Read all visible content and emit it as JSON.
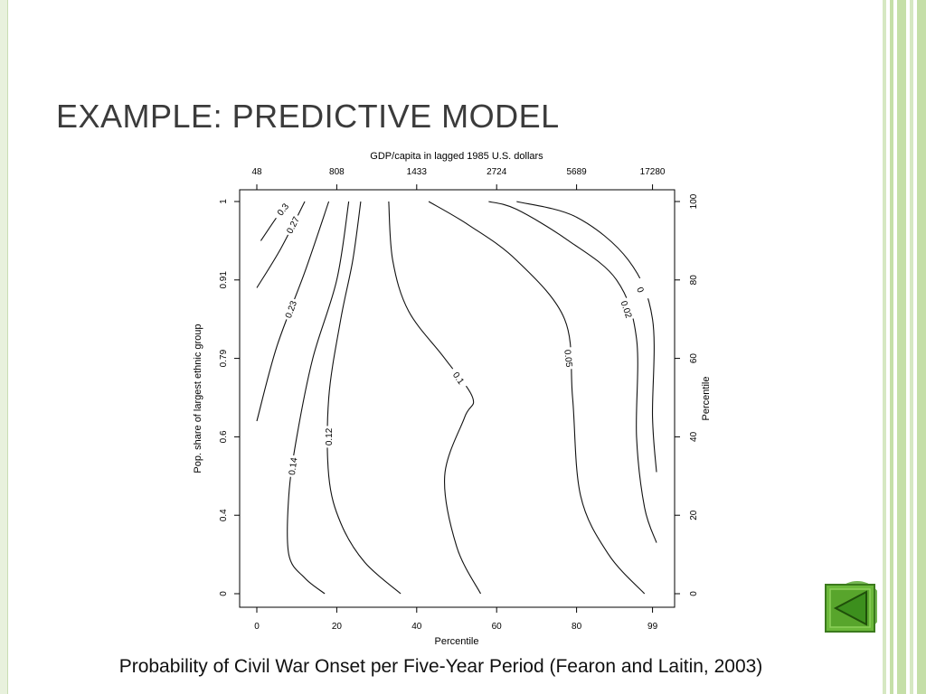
{
  "slide": {
    "title": "EXAMPLE: PREDICTIVE MODEL",
    "caption": "Probability of Civil War Onset per Five-Year Period (Fearon and Laitin, 2003)"
  },
  "nav": {
    "icon": "back-arrow-icon",
    "color": "#4f9a2a"
  },
  "theme": {
    "accent": "#c5dfa8",
    "title_color": "#3b3b3b"
  },
  "chart_data": {
    "type": "contour",
    "title": "",
    "top_axis_label": "GDP/capita in lagged 1985 U.S. dollars",
    "top_ticks": [
      "48",
      "808",
      "1433",
      "2724",
      "5689",
      "17280"
    ],
    "bottom_axis_label": "Percentile",
    "bottom_ticks": [
      "0",
      "20",
      "40",
      "60",
      "80",
      "99"
    ],
    "left_axis_label": "Pop. share of largest ethnic group",
    "left_ticks": [
      "0",
      "0.4",
      "0.6",
      "0.79",
      "0.91",
      "1"
    ],
    "right_axis_label": "Percentile",
    "right_ticks": [
      "0",
      "20",
      "40",
      "60",
      "80",
      "100"
    ],
    "xlim": [
      0,
      100
    ],
    "ylim": [
      0,
      100
    ],
    "levels": [
      {
        "level": "0.3",
        "points": [
          [
            1,
            90
          ],
          [
            5,
            96
          ],
          [
            8,
            100
          ]
        ]
      },
      {
        "level": "0.27",
        "points": [
          [
            0,
            78
          ],
          [
            6,
            88
          ],
          [
            12,
            100
          ]
        ]
      },
      {
        "level": "0.23",
        "points": [
          [
            0,
            44
          ],
          [
            5,
            63
          ],
          [
            12,
            82
          ],
          [
            18,
            100
          ]
        ]
      },
      {
        "level": "0.14",
        "points": [
          [
            17,
            0
          ],
          [
            12,
            4
          ],
          [
            8,
            10
          ],
          [
            8,
            25
          ],
          [
            10,
            40
          ],
          [
            14,
            60
          ],
          [
            20,
            80
          ],
          [
            23,
            100
          ]
        ]
      },
      {
        "level": "0.12",
        "points": [
          [
            36,
            0
          ],
          [
            27,
            8
          ],
          [
            21,
            18
          ],
          [
            18,
            30
          ],
          [
            18,
            50
          ],
          [
            21,
            70
          ],
          [
            24,
            85
          ],
          [
            26,
            100
          ]
        ]
      },
      {
        "level": "0.1",
        "points": [
          [
            56,
            0
          ],
          [
            50,
            12
          ],
          [
            47,
            30
          ],
          [
            52,
            45
          ],
          [
            54,
            50
          ],
          [
            47,
            60
          ],
          [
            38,
            72
          ],
          [
            34,
            85
          ],
          [
            33,
            100
          ]
        ]
      },
      {
        "level": "0.05",
        "points": [
          [
            97,
            0
          ],
          [
            88,
            10
          ],
          [
            81,
            25
          ],
          [
            79,
            50
          ],
          [
            77,
            70
          ],
          [
            65,
            85
          ],
          [
            53,
            94
          ],
          [
            43,
            100
          ]
        ]
      },
      {
        "level": "0.02",
        "points": [
          [
            100,
            13
          ],
          [
            97,
            22
          ],
          [
            95,
            40
          ],
          [
            95,
            65
          ],
          [
            90,
            80
          ],
          [
            78,
            90
          ],
          [
            65,
            98
          ],
          [
            58,
            100
          ]
        ]
      },
      {
        "level": "0",
        "points": [
          [
            100,
            31
          ],
          [
            99,
            45
          ],
          [
            99,
            70
          ],
          [
            93,
            85
          ],
          [
            80,
            96
          ],
          [
            65,
            100
          ]
        ]
      }
    ]
  }
}
